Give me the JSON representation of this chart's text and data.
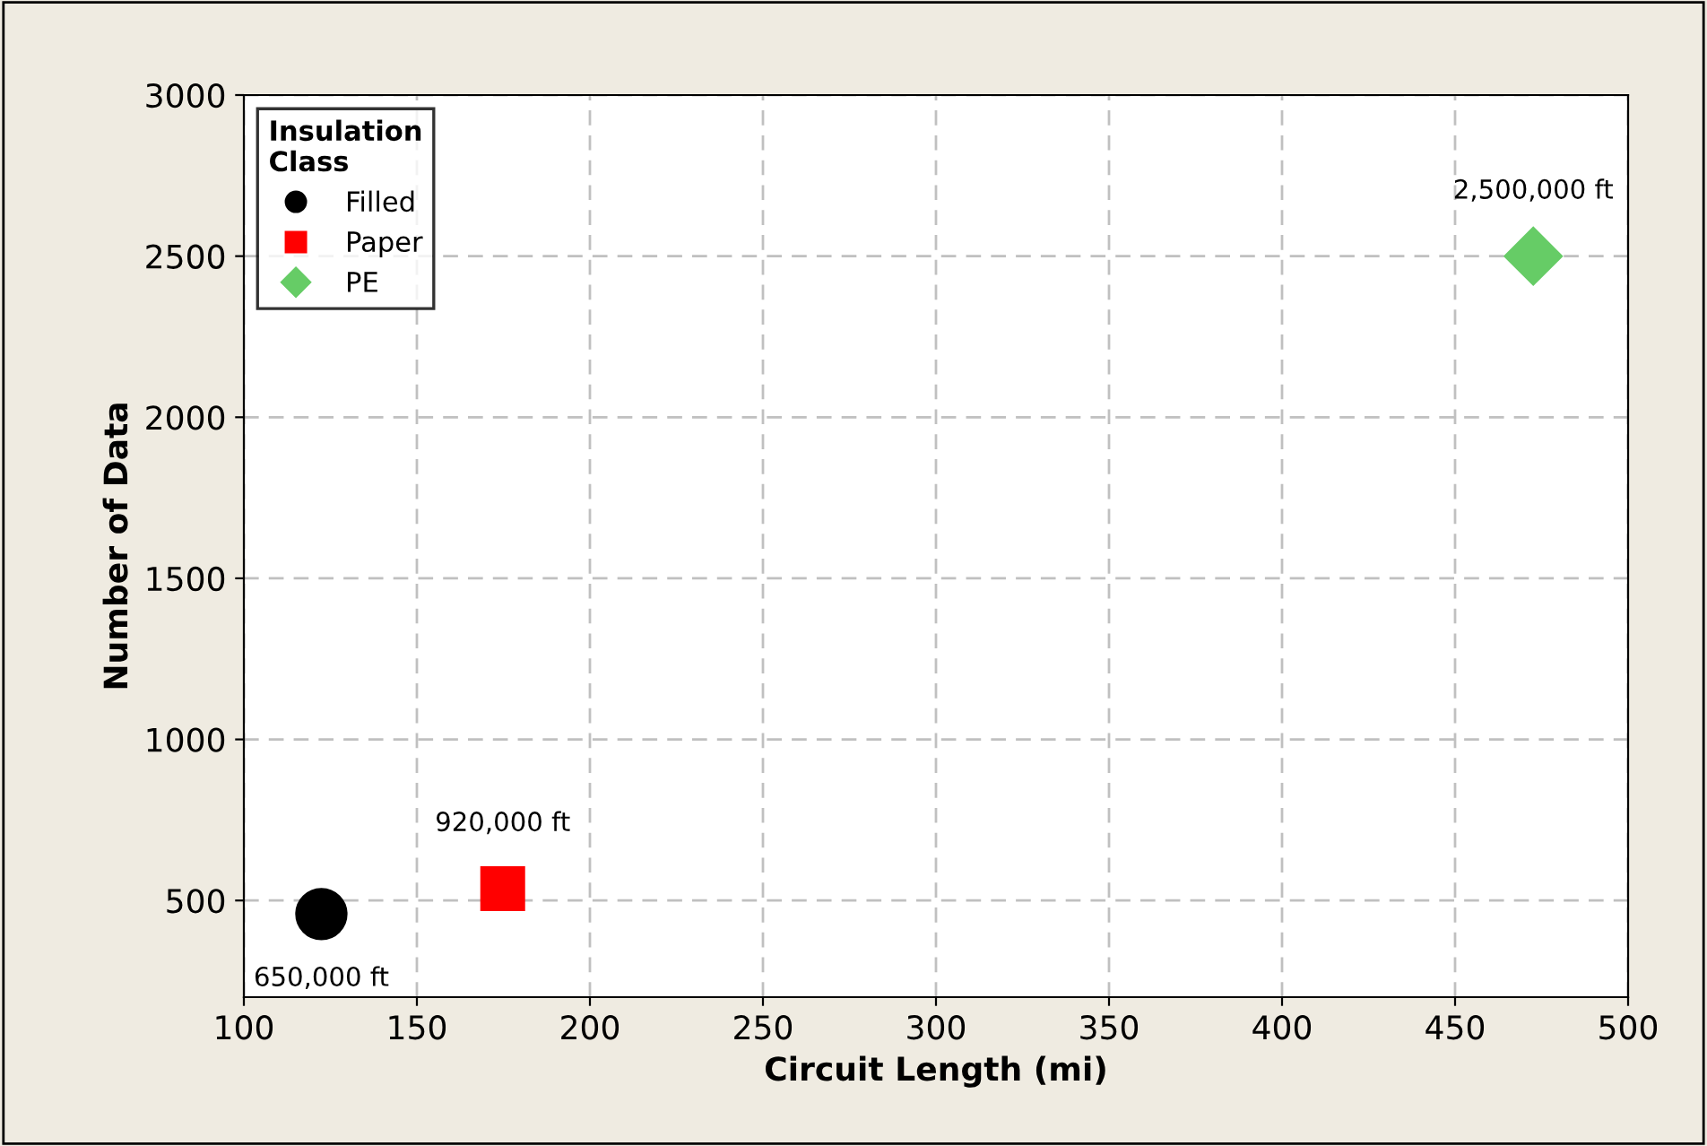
{
  "chart_data": {
    "type": "scatter",
    "xlabel": "Circuit Length (mi)",
    "ylabel": "Number of Data",
    "legend_title": "Insulation\nClass",
    "xlim": [
      100,
      500
    ],
    "xticks": [
      100,
      150,
      200,
      250,
      300,
      350,
      400,
      450,
      500
    ],
    "ylim": [
      200,
      3000
    ],
    "yticks": [
      500,
      1000,
      1500,
      2000,
      2500,
      3000
    ],
    "grid": true,
    "legend": "top left",
    "series": [
      {
        "name": "Filled",
        "color": "#000000",
        "marker": "circle",
        "x": [
          122.4
        ],
        "values": [
          458
        ]
      },
      {
        "name": "Paper",
        "color": "#ff0000",
        "marker": "square",
        "x": [
          174.8
        ],
        "values": [
          537
        ]
      },
      {
        "name": "PE",
        "color": "#66cc66",
        "marker": "diamond",
        "x": [
          472.6
        ],
        "values": [
          2500
        ]
      }
    ],
    "annotations": [
      {
        "text": "650,000 ft",
        "x": 122.4,
        "y": 458
      },
      {
        "text": "920,000 ft",
        "x": 174.8,
        "y": 537
      },
      {
        "text": "2,500,000 ft",
        "x": 472.6,
        "y": 2500
      }
    ]
  }
}
